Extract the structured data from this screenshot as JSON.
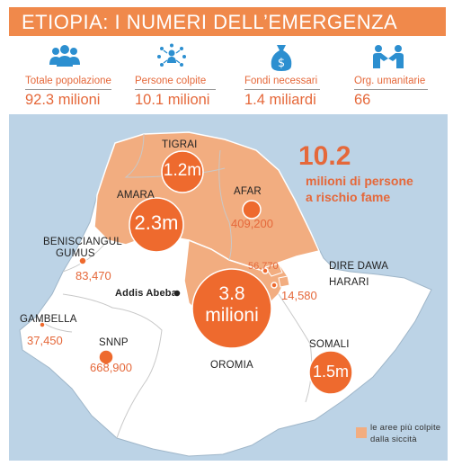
{
  "header": {
    "title": "ETIOPIA: I NUMERI DELL’EMERGENZA"
  },
  "stats": [
    {
      "icon": "population-icon",
      "label": "Totale popolazione",
      "value": "92.3 milioni"
    },
    {
      "icon": "affected-people-icon",
      "label": "Persone colpite",
      "value": "10.1 milioni"
    },
    {
      "icon": "money-bag-icon",
      "label": "Fondi necessari",
      "value": "1.4 miliardi"
    },
    {
      "icon": "handshake-icon",
      "label": "Org. umanitarie",
      "value": "66"
    }
  ],
  "map": {
    "headline_number": "10.2",
    "headline_line1": "milioni di persone",
    "headline_line2": "a rischio fame",
    "capital": "Addis Abeba",
    "regions": {
      "tigrai": "TIGRAI",
      "amara": "AMARA",
      "afar": "AFAR",
      "benishangul_line1": "BENISCIANGUL",
      "benishangul_line2": "GUMUS",
      "dire_dawa": "DIRE DAWA",
      "harari": "HARARI",
      "gambella": "GAMBELLA",
      "snnp": "SNNP",
      "oromia": "OROMIA",
      "somali": "SOMALI"
    },
    "values": {
      "tigrai": "1.2m",
      "amara": "2.3m",
      "afar": "409,200",
      "benishangul": "83,470",
      "dire_dawa": "56,770",
      "harari": "14,580",
      "oromia_line1": "3.8",
      "oromia_line2": "milioni",
      "gambella": "37,450",
      "snnp": "668,900",
      "somali": "1.5m"
    },
    "legend": {
      "line1": "le aree più colpite",
      "line2": "dalla siccità"
    },
    "colors": {
      "affected": "#f2ad80",
      "unaffected": "#ffffff",
      "bubble": "#ee6a2e",
      "water": "#bcd3e6"
    }
  }
}
